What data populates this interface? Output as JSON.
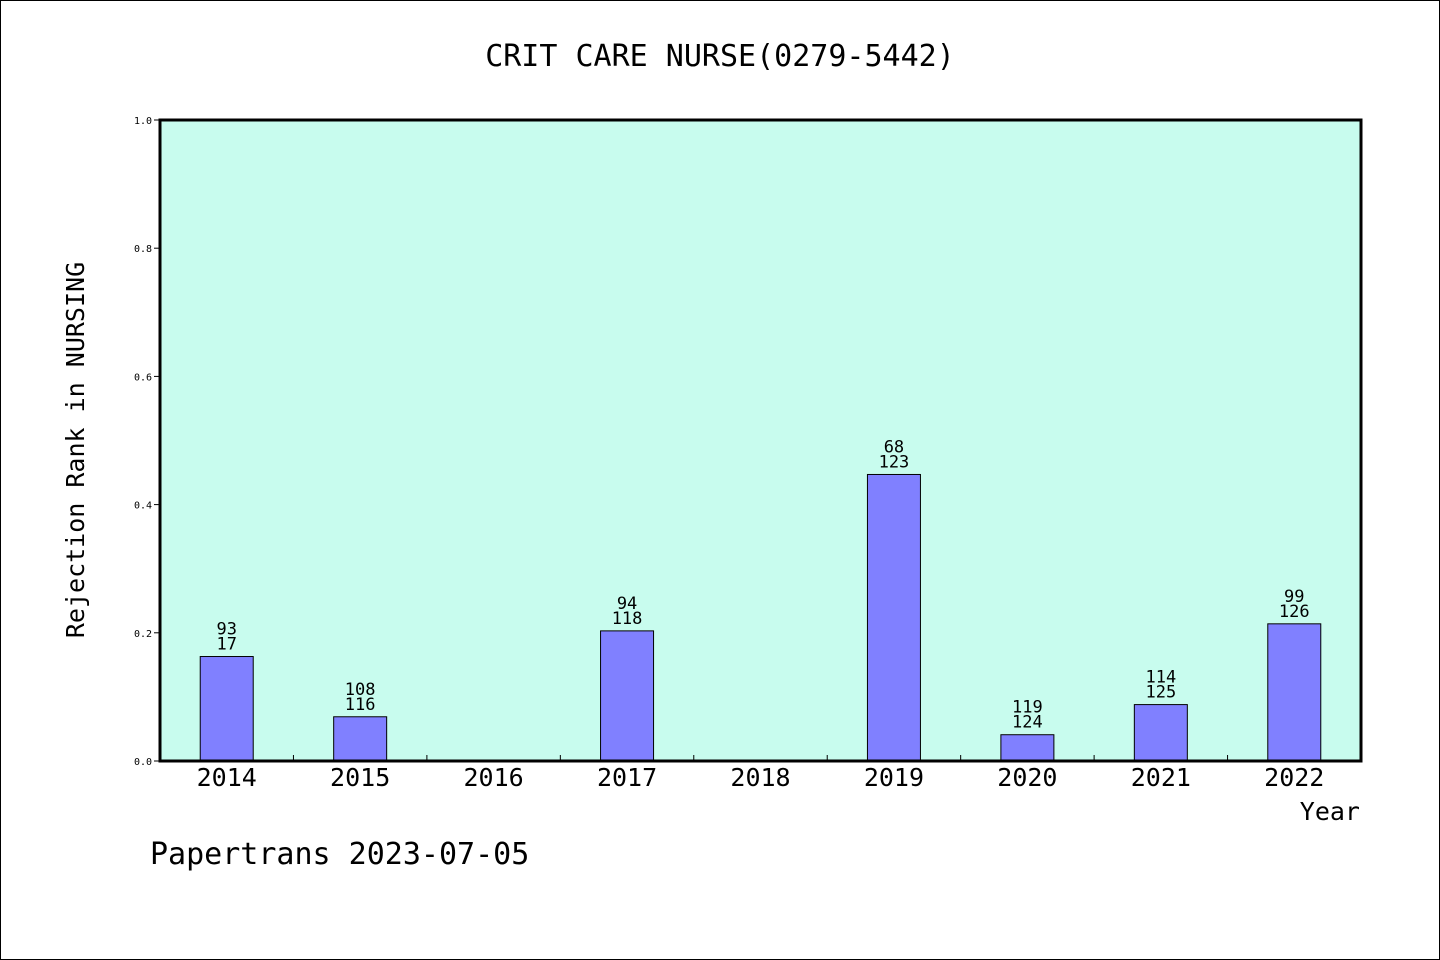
{
  "chart_data": {
    "type": "bar",
    "title": "CRIT CARE NURSE(0279-5442)",
    "xlabel": "Year",
    "ylabel": "Rejection Rank in NURSING",
    "footer": "Papertrans 2023-07-05",
    "ylim": [
      0,
      1.0
    ],
    "yticks": [
      "0.0",
      "0.2",
      "0.4",
      "0.6",
      "0.8",
      "1.0"
    ],
    "categories": [
      "2014",
      "2015",
      "2016",
      "2017",
      "2018",
      "2019",
      "2020",
      "2021",
      "2022"
    ],
    "values": [
      0.163,
      0.069,
      null,
      0.203,
      null,
      0.447,
      0.041,
      0.088,
      0.214
    ],
    "label_top": [
      "93",
      "108",
      "",
      "94",
      "",
      "68",
      "119",
      "114",
      "99"
    ],
    "label_bottom": [
      "17",
      "116",
      "",
      "118",
      "",
      "123",
      "124",
      "125",
      "126"
    ],
    "grid": false,
    "colors": {
      "plot_background": "#c8fcee",
      "bar_fill": "#8080ff",
      "bar_stroke": "#000000"
    }
  }
}
